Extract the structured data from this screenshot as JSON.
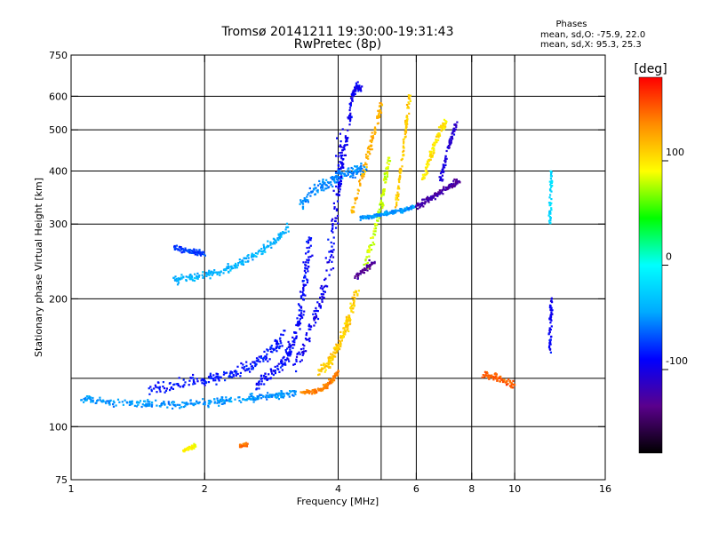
{
  "chart_data": {
    "type": "scatter",
    "title": "Tromsø 20141211 19:30:00-19:31:43",
    "subtitle": "RwPretec (8p)",
    "xlabel": "Frequency [MHz]",
    "ylabel": "Stationary phase Virtual Height [km]",
    "x_scale": "log",
    "y_scale": "log",
    "xlim": [
      1,
      16
    ],
    "ylim": [
      75,
      750
    ],
    "x_ticks": [
      1,
      2,
      4,
      6,
      8,
      10,
      16
    ],
    "x_tick_labels": [
      "1",
      "2",
      "4",
      "6",
      "8",
      "10",
      "16"
    ],
    "y_ticks": [
      75,
      100,
      200,
      300,
      400,
      500,
      600,
      750
    ],
    "y_tick_labels": [
      "75",
      "100",
      "200",
      "300",
      "400",
      "500",
      "600",
      "750"
    ],
    "x_gridlines": [
      2,
      4,
      5,
      6,
      8,
      10
    ],
    "y_gridlines": [
      100,
      130,
      200,
      300,
      400,
      500,
      600
    ],
    "grid": true,
    "colorbar": {
      "label": "[deg]",
      "range": [
        -180,
        180
      ],
      "ticks": [
        100,
        0,
        -100
      ],
      "tick_labels": [
        "100",
        "0",
        "-100"
      ],
      "colors": [
        "#000000",
        "#5a008c",
        "#0000ff",
        "#00aaff",
        "#00ffff",
        "#00ff00",
        "#ffff00",
        "#ff8c00",
        "#ff0000"
      ]
    },
    "phase_stats": {
      "heading": "Phases",
      "line_o": "mean, sd,O: -75.9, 22.0",
      "line_x": "mean, sd,X:  95.3, 25.3"
    },
    "traces": [
      {
        "f": [
          1.05,
          1.15,
          1.3,
          1.45,
          1.6,
          1.8,
          2.0,
          2.2,
          2.4,
          2.6,
          2.8,
          3.0,
          3.2
        ],
        "h": [
          117,
          115,
          114,
          113,
          113,
          113,
          114,
          115,
          116,
          117,
          118,
          119,
          121
        ],
        "phase": -50,
        "scatter": 0.018
      },
      {
        "f": [
          1.5,
          1.7,
          1.9,
          2.1,
          2.3,
          2.5,
          2.7,
          2.9,
          3.0
        ],
        "h": [
          123,
          125,
          128,
          130,
          133,
          138,
          145,
          155,
          165
        ],
        "phase": -85,
        "scatter": 0.03
      },
      {
        "f": [
          2.6,
          2.8,
          3.0,
          3.1,
          3.2,
          3.3,
          3.35,
          3.4,
          3.45
        ],
        "h": [
          125,
          132,
          142,
          150,
          165,
          185,
          210,
          240,
          280
        ],
        "phase": -90,
        "scatter": 0.025
      },
      {
        "f": [
          3.3,
          3.5,
          3.7,
          3.8,
          3.9,
          4.0
        ],
        "h": [
          120,
          121,
          123,
          126,
          130,
          135
        ],
        "phase": 140,
        "scatter": 0.012
      },
      {
        "f": [
          3.6,
          3.8,
          3.9,
          4.0,
          4.1,
          4.2,
          4.3,
          4.4
        ],
        "h": [
          135,
          140,
          148,
          155,
          165,
          175,
          190,
          210
        ],
        "phase": 110,
        "scatter": 0.02
      },
      {
        "f": [
          3.2,
          3.4,
          3.6,
          3.8,
          3.9,
          4.0,
          4.05
        ],
        "h": [
          140,
          160,
          190,
          230,
          290,
          380,
          500
        ],
        "phase": -95,
        "scatter": 0.03
      },
      {
        "f": [
          1.7,
          1.85,
          2.0,
          2.15,
          2.3,
          2.5,
          2.7,
          2.9,
          3.1
        ],
        "h": [
          222,
          224,
          228,
          232,
          238,
          248,
          260,
          275,
          295
        ],
        "phase": -40,
        "scatter": 0.02
      },
      {
        "f": [
          1.7,
          1.8,
          1.9,
          2.0
        ],
        "h": [
          265,
          260,
          258,
          255
        ],
        "phase": -75,
        "scatter": 0.015
      },
      {
        "f": [
          3.3,
          3.5,
          3.7,
          3.9,
          4.0,
          4.2,
          4.4,
          4.6
        ],
        "h": [
          330,
          360,
          370,
          380,
          390,
          395,
          400,
          410
        ],
        "phase": -55,
        "scatter": 0.025
      },
      {
        "f": [
          4.0,
          4.1,
          4.2,
          4.3,
          4.4,
          4.5
        ],
        "h": [
          350,
          420,
          500,
          600,
          640,
          620
        ],
        "phase": -95,
        "scatter": 0.015
      },
      {
        "f": [
          4.3,
          4.5,
          4.7,
          4.9,
          5.0
        ],
        "h": [
          320,
          380,
          450,
          520,
          580
        ],
        "phase": 120,
        "scatter": 0.015
      },
      {
        "f": [
          4.6,
          4.8,
          5.0,
          5.1,
          5.2
        ],
        "h": [
          240,
          280,
          330,
          380,
          430
        ],
        "phase": 80,
        "scatter": 0.015
      },
      {
        "f": [
          4.5,
          4.7,
          4.9,
          5.1,
          5.3,
          5.5,
          5.7,
          6.0
        ],
        "h": [
          310,
          312,
          315,
          318,
          320,
          322,
          325,
          330
        ],
        "phase": -50,
        "scatter": 0.01
      },
      {
        "f": [
          5.4,
          5.5,
          5.6,
          5.7,
          5.8
        ],
        "h": [
          330,
          380,
          440,
          520,
          600
        ],
        "phase": 110,
        "scatter": 0.01
      },
      {
        "f": [
          6.0,
          6.3,
          6.6,
          6.9,
          7.2,
          7.5
        ],
        "h": [
          330,
          340,
          350,
          360,
          370,
          380
        ],
        "phase": -125,
        "scatter": 0.015
      },
      {
        "f": [
          6.2,
          6.4,
          6.6,
          6.8,
          7.0
        ],
        "h": [
          380,
          420,
          460,
          500,
          520
        ],
        "phase": 100,
        "scatter": 0.015
      },
      {
        "f": [
          6.8,
          7.0,
          7.2,
          7.4
        ],
        "h": [
          380,
          430,
          480,
          520
        ],
        "phase": -105,
        "scatter": 0.012
      },
      {
        "f": [
          4.4,
          4.6,
          4.8
        ],
        "h": [
          225,
          235,
          245
        ],
        "phase": -130,
        "scatter": 0.02
      },
      {
        "f": [
          1.8,
          1.85,
          1.9
        ],
        "h": [
          88,
          89,
          90
        ],
        "phase": 95,
        "scatter": 0.01
      },
      {
        "f": [
          2.4,
          2.5
        ],
        "h": [
          90,
          91
        ],
        "phase": 145,
        "scatter": 0.01
      },
      {
        "f": [
          12.0,
          12.05,
          12.1
        ],
        "h": [
          300,
          350,
          400
        ],
        "phase": -20,
        "scatter": 0.01
      },
      {
        "f": [
          12.0,
          12.05,
          12.1
        ],
        "h": [
          150,
          175,
          200
        ],
        "phase": -95,
        "scatter": 0.01
      },
      {
        "f": [
          8.5,
          9.0,
          9.5,
          10.0
        ],
        "h": [
          132,
          132,
          128,
          125
        ],
        "phase": 150,
        "scatter": 0.02
      }
    ]
  }
}
